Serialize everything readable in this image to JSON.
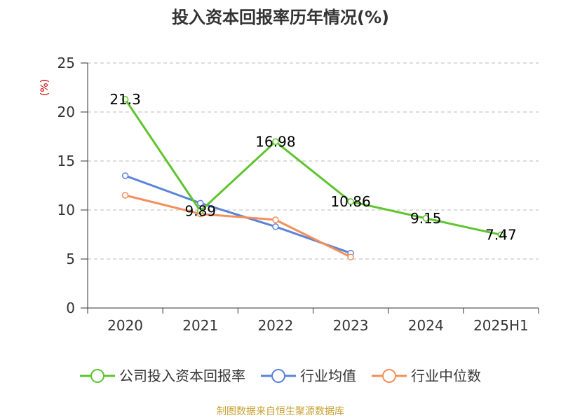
{
  "colors": {
    "company": "#5ec42d",
    "industry_avg": "#5b84d8",
    "industry_median": "#f48f5b",
    "axis": "#333333",
    "grid": "#bbbbbb"
  },
  "source_text": "制图数据来自恒生聚源数据库",
  "chart_data": {
    "type": "line",
    "title": "投入资本回报率历年情况(%)",
    "ylabel": "(%)",
    "xlabel": "",
    "categories": [
      "2020",
      "2021",
      "2022",
      "2023",
      "2024",
      "2025H1"
    ],
    "ylim": [
      0,
      25
    ],
    "yticks": [
      0,
      5,
      10,
      15,
      20,
      25
    ],
    "grid": true,
    "legend_position": "bottom",
    "series": [
      {
        "name": "公司投入资本回报率",
        "color_key": "company",
        "values": [
          21.3,
          9.89,
          16.98,
          10.86,
          9.15,
          7.47
        ],
        "labels": [
          "21.3",
          "9.89",
          "16.98",
          "10.86",
          "9.15",
          "7.47"
        ],
        "show_labels": true
      },
      {
        "name": "行业均值",
        "color_key": "industry_avg",
        "values": [
          13.5,
          10.7,
          8.3,
          5.6,
          null,
          null
        ],
        "show_labels": false
      },
      {
        "name": "行业中位数",
        "color_key": "industry_median",
        "values": [
          11.5,
          9.6,
          9.0,
          5.2,
          null,
          null
        ],
        "show_labels": false
      }
    ]
  }
}
